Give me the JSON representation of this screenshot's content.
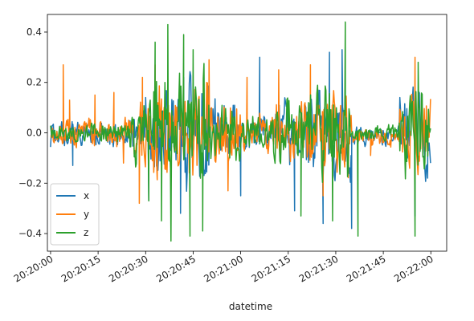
{
  "chart_data": {
    "type": "line",
    "title": "",
    "xlabel": "datetime",
    "ylabel": "",
    "x_axis": {
      "range": [
        "20:19:59",
        "20:22:05"
      ],
      "ticks": [
        "20:20:00",
        "20:20:15",
        "20:20:30",
        "20:20:45",
        "20:21:00",
        "20:21:15",
        "20:21:30",
        "20:21:45",
        "20:22:00"
      ]
    },
    "y_axis": {
      "range": [
        -0.47,
        0.47
      ],
      "ticks": [
        0.4,
        0.2,
        0.0,
        -0.2,
        -0.4
      ],
      "tick_labels": [
        "0.4",
        "0.2",
        "0.0",
        "−0.2",
        "−0.4"
      ]
    },
    "grid": false,
    "legend_position": "lower-left",
    "series": [
      {
        "name": "x",
        "color": "#1f77b4",
        "segments": [
          {
            "from": "20:20:00",
            "to": "20:20:25",
            "amp": 0.08,
            "offset": -0.01
          },
          {
            "from": "20:20:25",
            "to": "20:20:32",
            "amp": 0.18,
            "offset": 0.0
          },
          {
            "from": "20:20:32",
            "to": "20:20:50",
            "amp": 0.35,
            "offset": 0.0
          },
          {
            "from": "20:20:50",
            "to": "20:21:00",
            "amp": 0.2,
            "offset": 0.0
          },
          {
            "from": "20:21:00",
            "to": "20:21:10",
            "amp": 0.12,
            "offset": 0.0
          },
          {
            "from": "20:21:10",
            "to": "20:21:20",
            "amp": 0.22,
            "offset": 0.0
          },
          {
            "from": "20:21:20",
            "to": "20:21:35",
            "amp": 0.3,
            "offset": 0.0
          },
          {
            "from": "20:21:35",
            "to": "20:21:50",
            "amp": 0.06,
            "offset": -0.01
          },
          {
            "from": "20:21:50",
            "to": "20:22:00",
            "amp": 0.3,
            "offset": 0.0
          }
        ],
        "extremes": [
          [
            "20:20:07",
            -0.13
          ],
          [
            "20:20:30",
            0.14
          ],
          [
            "20:20:31",
            -0.27
          ],
          [
            "20:20:41",
            -0.32
          ],
          [
            "20:20:42",
            0.22
          ],
          [
            "20:21:00",
            -0.25
          ],
          [
            "20:21:06",
            0.3
          ],
          [
            "20:21:17",
            -0.31
          ],
          [
            "20:21:26",
            -0.36
          ],
          [
            "20:21:28",
            0.32
          ],
          [
            "20:21:32",
            0.33
          ],
          [
            "20:21:35",
            -0.38
          ],
          [
            "20:21:55",
            -0.33
          ],
          [
            "20:21:59",
            -0.18
          ]
        ]
      },
      {
        "name": "y",
        "color": "#ff7f0e",
        "segments": [
          {
            "from": "20:20:00",
            "to": "20:20:25",
            "amp": 0.09,
            "offset": 0.0
          },
          {
            "from": "20:20:25",
            "to": "20:20:32",
            "amp": 0.2,
            "offset": 0.0
          },
          {
            "from": "20:20:32",
            "to": "20:20:50",
            "amp": 0.32,
            "offset": 0.0
          },
          {
            "from": "20:20:50",
            "to": "20:21:00",
            "amp": 0.22,
            "offset": 0.0
          },
          {
            "from": "20:21:00",
            "to": "20:21:10",
            "amp": 0.12,
            "offset": 0.0
          },
          {
            "from": "20:21:10",
            "to": "20:21:20",
            "amp": 0.2,
            "offset": 0.0
          },
          {
            "from": "20:21:20",
            "to": "20:21:35",
            "amp": 0.28,
            "offset": 0.0
          },
          {
            "from": "20:21:35",
            "to": "20:21:50",
            "amp": 0.06,
            "offset": -0.02
          },
          {
            "from": "20:21:50",
            "to": "20:22:00",
            "amp": 0.25,
            "offset": 0.0
          }
        ],
        "extremes": [
          [
            "20:20:04",
            0.27
          ],
          [
            "20:20:06",
            0.13
          ],
          [
            "20:20:14",
            0.15
          ],
          [
            "20:20:20",
            0.16
          ],
          [
            "20:20:23",
            -0.12
          ],
          [
            "20:20:28",
            -0.28
          ],
          [
            "20:20:29",
            0.22
          ],
          [
            "20:20:33",
            0.27
          ],
          [
            "20:20:50",
            0.29
          ],
          [
            "20:20:56",
            -0.23
          ],
          [
            "20:21:02",
            0.22
          ],
          [
            "20:21:12",
            0.25
          ],
          [
            "20:21:22",
            0.27
          ],
          [
            "20:21:26",
            -0.25
          ],
          [
            "20:21:41",
            -0.09
          ],
          [
            "20:21:55",
            0.3
          ],
          [
            "20:22:00",
            0.3
          ]
        ]
      },
      {
        "name": "z",
        "color": "#2ca02c",
        "segments": [
          {
            "from": "20:20:00",
            "to": "20:20:25",
            "amp": 0.06,
            "offset": 0.0
          },
          {
            "from": "20:20:25",
            "to": "20:20:32",
            "amp": 0.2,
            "offset": 0.0
          },
          {
            "from": "20:20:32",
            "to": "20:20:50",
            "amp": 0.38,
            "offset": 0.0
          },
          {
            "from": "20:20:50",
            "to": "20:21:00",
            "amp": 0.18,
            "offset": 0.0
          },
          {
            "from": "20:21:00",
            "to": "20:21:10",
            "amp": 0.12,
            "offset": 0.0
          },
          {
            "from": "20:21:10",
            "to": "20:21:20",
            "amp": 0.22,
            "offset": 0.0
          },
          {
            "from": "20:21:20",
            "to": "20:21:35",
            "amp": 0.3,
            "offset": 0.0
          },
          {
            "from": "20:21:35",
            "to": "20:21:50",
            "amp": 0.05,
            "offset": 0.0
          },
          {
            "from": "20:21:50",
            "to": "20:22:00",
            "amp": 0.3,
            "offset": 0.0
          }
        ],
        "extremes": [
          [
            "20:20:31",
            -0.27
          ],
          [
            "20:20:33",
            0.36
          ],
          [
            "20:20:35",
            -0.35
          ],
          [
            "20:20:37",
            0.43
          ],
          [
            "20:20:38",
            -0.43
          ],
          [
            "20:20:42",
            0.39
          ],
          [
            "20:20:44",
            -0.41
          ],
          [
            "20:20:45",
            0.33
          ],
          [
            "20:20:48",
            -0.39
          ],
          [
            "20:21:19",
            -0.33
          ],
          [
            "20:21:29",
            -0.35
          ],
          [
            "20:21:33",
            0.44
          ],
          [
            "20:21:37",
            -0.41
          ],
          [
            "20:21:55",
            -0.41
          ],
          [
            "20:21:56",
            0.28
          ]
        ]
      }
    ]
  }
}
